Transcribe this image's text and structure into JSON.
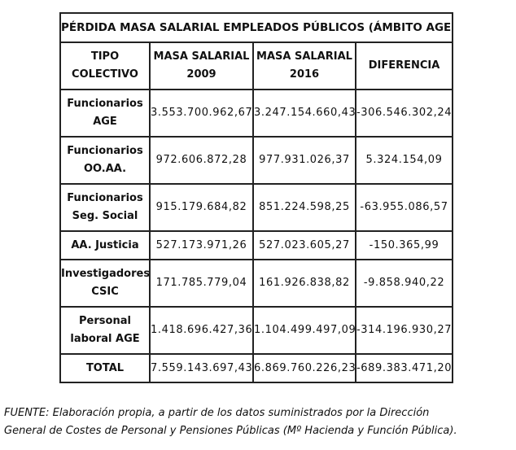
{
  "table": {
    "title": "PÉRDIDA MASA SALARIAL EMPLEADOS PÚBLICOS (ÁMBITO AGE)",
    "headers": [
      [
        "TIPO",
        "COLECTIVO"
      ],
      [
        "MASA SALARIAL",
        "2009"
      ],
      [
        "MASA SALARIAL",
        "2016"
      ],
      [
        "DIFERENCIA"
      ]
    ],
    "rows": [
      {
        "label": [
          "Funcionarios",
          "AGE"
        ],
        "v2009": "3.553.700.962,67",
        "v2016": "3.247.154.660,43",
        "diff": "-306.546.302,24"
      },
      {
        "label": [
          "Funcionarios",
          "OO.AA."
        ],
        "v2009": "972.606.872,28",
        "v2016": "977.931.026,37",
        "diff": "5.324.154,09"
      },
      {
        "label": [
          "Funcionarios",
          "Seg. Social"
        ],
        "v2009": "915.179.684,82",
        "v2016": "851.224.598,25",
        "diff": "-63.955.086,57"
      },
      {
        "label": [
          "AA. Justicia"
        ],
        "v2009": "527.173.971,26",
        "v2016": "527.023.605,27",
        "diff": "-150.365,99"
      },
      {
        "label": [
          "Investigadores",
          "CSIC"
        ],
        "v2009": "171.785.779,04",
        "v2016": "161.926.838,82",
        "diff": "-9.858.940,22"
      },
      {
        "label": [
          "Personal",
          "laboral AGE"
        ],
        "v2009": "1.418.696.427,36",
        "v2016": "1.104.499.497,09",
        "diff": "-314.196.930,27"
      },
      {
        "label": [
          "TOTAL"
        ],
        "v2009": "7.559.143.697,43",
        "v2016": "6.869.760.226,23",
        "diff": "-689.383.471,20"
      }
    ]
  },
  "footer": {
    "prefix": "FUENTE:",
    "line1": " Elaboración propia, a partir de los datos suministrados por la Dirección",
    "line2": "General de Costes de Personal y Pensiones Públicas (Mº Hacienda y Función Pública)."
  }
}
